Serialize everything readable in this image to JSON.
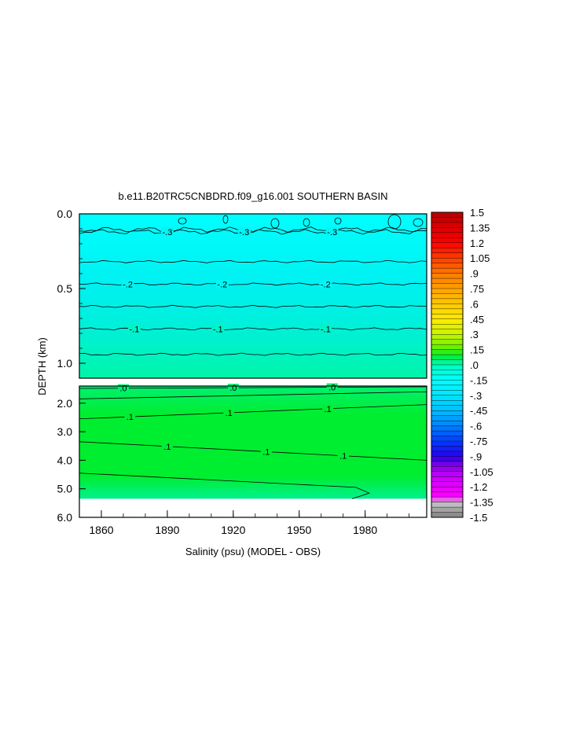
{
  "chart_data": {
    "type": "heatmap",
    "title": "b.e11.B20TRC5CNBDRD.f09_g16.001 SOUTHERN BASIN",
    "xlabel": "Salinity (psu) (MODEL - OBS)",
    "ylabel": "DEPTH (km)",
    "xlim": [
      1850,
      2008
    ],
    "x_ticks": [
      "1860",
      "1890",
      "1920",
      "1950",
      "1980"
    ],
    "upper_panel": {
      "ylim": [
        0.0,
        1.1
      ],
      "y_ticks": [
        "0.0",
        "0.5",
        "1.0"
      ],
      "contours": [
        {
          "level": "-.3",
          "depth": 0.12,
          "labels_at": [
            1890,
            1925,
            1965
          ]
        },
        {
          "level": "-.2",
          "depth": 0.47,
          "labels_at": [
            1872,
            1915,
            1962
          ]
        },
        {
          "level": "-.1",
          "depth": 0.77,
          "labels_at": [
            1875,
            1913,
            1962
          ]
        }
      ],
      "extra_contour_depths": [
        0.32,
        0.62,
        0.94
      ]
    },
    "lower_panel": {
      "ylim": [
        1.4,
        6.0
      ],
      "y_ticks": [
        "2.0",
        "3.0",
        "4.0",
        "5.0",
        "6.0"
      ],
      "data_bottom_depth": 5.35,
      "contours": [
        {
          "level": ".0",
          "depth": 1.45,
          "labels_at": [
            1870,
            1920,
            1965
          ]
        },
        {
          "level": ".1",
          "depth": 2.5,
          "labels_at": [
            1873,
            1918,
            1963
          ]
        },
        {
          "level": ".1",
          "depth": 3.6,
          "labels_at": [
            1890,
            1935,
            1970
          ]
        }
      ]
    },
    "colorbar": {
      "min": -1.5,
      "max": 1.5,
      "step": 0.05,
      "tick_labels": [
        "1.5",
        "1.35",
        "1.2",
        "1.05",
        ".9",
        ".75",
        ".6",
        ".45",
        ".3",
        ".15",
        ".0",
        "-.15",
        "-.3",
        "-.45",
        "-.6",
        "-.75",
        "-.9",
        "-1.05",
        "-1.2",
        "-1.35",
        "-1.5"
      ]
    },
    "colors": {
      "upper_surface": "#00ffff",
      "upper_mid": "#00f0f0",
      "upper_deep": "#00f5a8",
      "lower_top": "#00f070",
      "lower_fill": "#00ee30",
      "lower_bottom": "#00f090"
    }
  }
}
